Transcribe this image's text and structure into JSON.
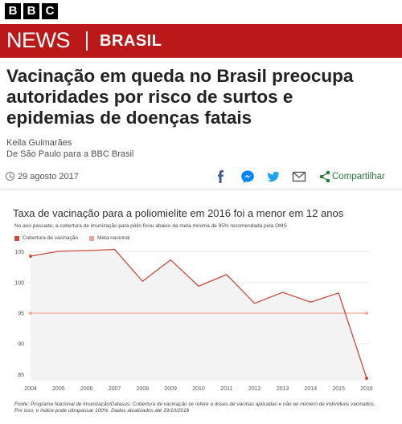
{
  "brand": {
    "logo_letters": [
      "B",
      "B",
      "C"
    ]
  },
  "nav": {
    "news_label": "NEWS",
    "section_label": "BRASIL",
    "brand_color": "#bb1919"
  },
  "article": {
    "headline_lines": [
      "Vacinação em queda no Brasil preocupa",
      "autoridades por risco de surtos e",
      "epidemias de doenças fatais"
    ],
    "author": "Keila Guimarães",
    "author_location": "De São Paulo para a BBC Brasil",
    "date": "29 agosto 2017",
    "share_label": "Compartilhar",
    "share_icons": [
      "facebook-icon",
      "messenger-icon",
      "twitter-icon",
      "email-icon",
      "share-icon"
    ]
  },
  "chart": {
    "title": "Taxa de vacinação para a poliomielite em 2016 foi a menor em 12 anos",
    "subtitle": "No ano passado, a cobertura de imunização para pólio ficou abaixo da meta mínima de 95% recomendada pela OMS",
    "footnote": "Fonte: Programa Nacional de Imunização/Datasus. Cobertura de vacinação se refere a doses de vacinas aplicadas e não ao número de indivíduos vacinados. Por isso, o índice pode ultrapassar 100%. Dados atualizados até 19/10/2016"
  },
  "chart_data": {
    "type": "line",
    "x": [
      "2004",
      "2005",
      "2006",
      "2007",
      "2008",
      "2009",
      "2010",
      "2011",
      "2012",
      "2013",
      "2014",
      "2015",
      "2016"
    ],
    "series": [
      {
        "name": "Cobertura de vacinação",
        "color": "#cc4a3e",
        "values": [
          104.3,
          105.1,
          105.2,
          105.4,
          100.2,
          103.7,
          99.4,
          101.3,
          96.6,
          98.4,
          96.8,
          98.3,
          84.4
        ]
      },
      {
        "name": "Meta nacional",
        "color": "#f0a79a",
        "values": [
          95,
          95,
          95,
          95,
          95,
          95,
          95,
          95,
          95,
          95,
          95,
          95,
          95
        ]
      }
    ],
    "yticks": [
      85,
      90,
      95,
      100,
      105
    ],
    "ylim": [
      84,
      106
    ],
    "grid": true,
    "legend": "top-left"
  }
}
